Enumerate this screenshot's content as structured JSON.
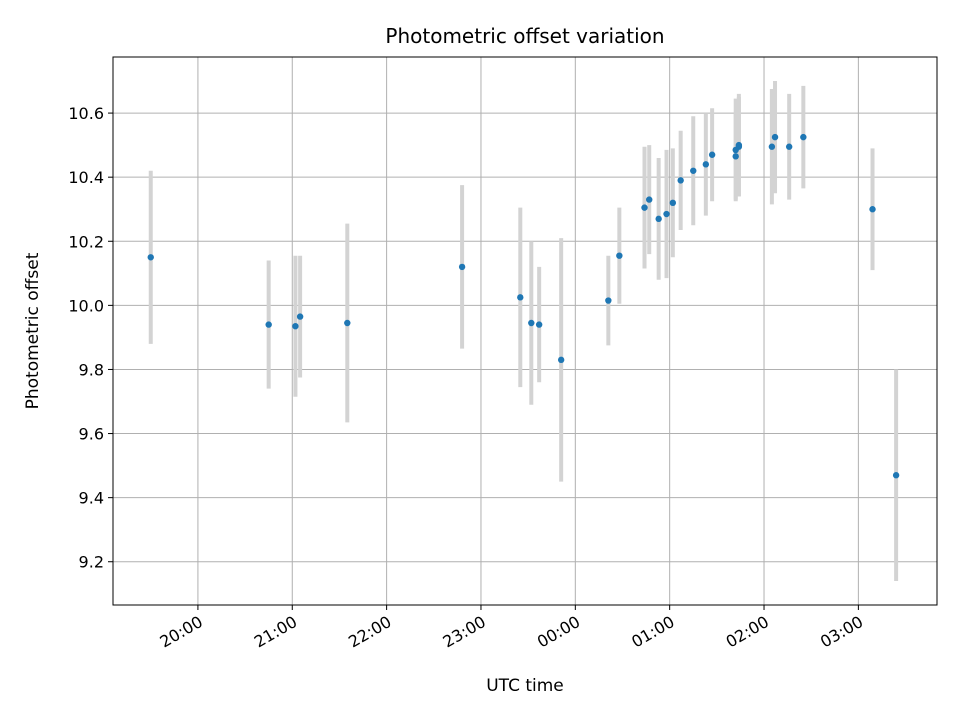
{
  "chart_data": {
    "type": "scatter",
    "title": "Photometric offset variation",
    "xlabel": "UTC time",
    "ylabel": "Photometric offset",
    "x_is_time": true,
    "xlim": [
      "19:06",
      "27:50"
    ],
    "ylim": [
      9.065,
      10.775
    ],
    "x_ticks": [
      "20:00",
      "21:00",
      "22:00",
      "23:00",
      "00:00",
      "01:00",
      "02:00",
      "03:00"
    ],
    "y_ticks": [
      "9.2",
      "9.4",
      "9.6",
      "9.8",
      "10.0",
      "10.2",
      "10.4",
      "10.6"
    ],
    "grid": true,
    "colors": {
      "point": "#1f77b4",
      "errorbar": "#d3d3d3",
      "grid": "#b0b0b0"
    },
    "series": [
      {
        "points": [
          {
            "x": "19:30",
            "y": 10.15,
            "err": 0.27
          },
          {
            "x": "20:45",
            "y": 9.94,
            "err": 0.2
          },
          {
            "x": "21:02",
            "y": 9.935,
            "err": 0.22
          },
          {
            "x": "21:05",
            "y": 9.965,
            "err": 0.19
          },
          {
            "x": "21:35",
            "y": 9.945,
            "err": 0.31
          },
          {
            "x": "22:48",
            "y": 10.12,
            "err": 0.255
          },
          {
            "x": "23:25",
            "y": 10.025,
            "err": 0.28
          },
          {
            "x": "23:32",
            "y": 9.945,
            "err": 0.255
          },
          {
            "x": "23:37",
            "y": 9.94,
            "err": 0.18
          },
          {
            "x": "23:51",
            "y": 9.83,
            "err": 0.38
          },
          {
            "x": "24:21",
            "y": 10.015,
            "err": 0.14
          },
          {
            "x": "24:28",
            "y": 10.155,
            "err": 0.15
          },
          {
            "x": "24:44",
            "y": 10.305,
            "err": 0.19
          },
          {
            "x": "24:47",
            "y": 10.33,
            "err": 0.17
          },
          {
            "x": "24:53",
            "y": 10.27,
            "err": 0.19
          },
          {
            "x": "24:58",
            "y": 10.285,
            "err": 0.2
          },
          {
            "x": "25:02",
            "y": 10.32,
            "err": 0.17
          },
          {
            "x": "25:07",
            "y": 10.39,
            "err": 0.155
          },
          {
            "x": "25:15",
            "y": 10.42,
            "err": 0.17
          },
          {
            "x": "25:23",
            "y": 10.44,
            "err": 0.16
          },
          {
            "x": "25:27",
            "y": 10.47,
            "err": 0.145
          },
          {
            "x": "25:42",
            "y": 10.485,
            "err": 0.16
          },
          {
            "x": "25:42",
            "y": 10.465,
            "err": 0.135
          },
          {
            "x": "25:44",
            "y": 10.495,
            "err": 0.155
          },
          {
            "x": "25:44",
            "y": 10.5,
            "err": 0.16
          },
          {
            "x": "26:05",
            "y": 10.495,
            "err": 0.18
          },
          {
            "x": "26:07",
            "y": 10.525,
            "err": 0.175
          },
          {
            "x": "26:16",
            "y": 10.495,
            "err": 0.165
          },
          {
            "x": "26:25",
            "y": 10.525,
            "err": 0.16
          },
          {
            "x": "27:09",
            "y": 10.3,
            "err": 0.19
          },
          {
            "x": "27:24",
            "y": 9.47,
            "err": 0.33
          }
        ]
      }
    ]
  }
}
